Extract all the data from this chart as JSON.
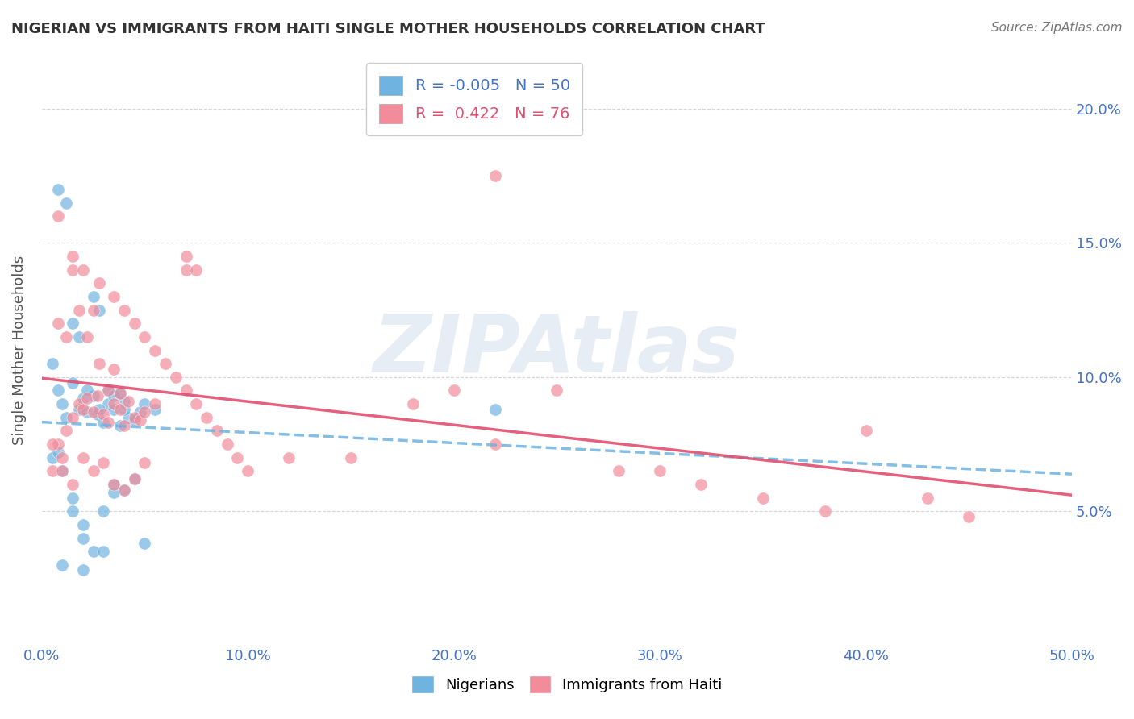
{
  "title": "NIGERIAN VS IMMIGRANTS FROM HAITI SINGLE MOTHER HOUSEHOLDS CORRELATION CHART",
  "source": "Source: ZipAtlas.com",
  "xlabel": "",
  "ylabel": "Single Mother Households",
  "xlim": [
    0.0,
    0.5
  ],
  "ylim": [
    0.0,
    0.22
  ],
  "xticks": [
    0.0,
    0.1,
    0.2,
    0.3,
    0.4,
    0.5
  ],
  "yticks_right": [
    0.05,
    0.1,
    0.15,
    0.2
  ],
  "ytick_labels_right": [
    "5.0%",
    "10.0%",
    "15.0%",
    "20.0%"
  ],
  "xtick_labels": [
    "0.0%",
    "10.0%",
    "20.0%",
    "30.0%",
    "40.0%",
    "50.0%"
  ],
  "legend_r1": "-0.005",
  "legend_n1": "50",
  "legend_r2": "0.422",
  "legend_n2": "76",
  "legend_label1": "Nigerians",
  "legend_label2": "Immigrants from Haiti",
  "color_nigerian": "#6fb3e0",
  "color_haiti": "#f28b9a",
  "color_axis_labels": "#4472c4",
  "watermark": "ZIPAtlas",
  "nigerian_x": [
    0.005,
    0.008,
    0.01,
    0.012,
    0.015,
    0.018,
    0.02,
    0.022,
    0.025,
    0.027,
    0.03,
    0.032,
    0.035,
    0.038,
    0.04,
    0.042,
    0.045,
    0.048,
    0.05,
    0.055,
    0.008,
    0.012,
    0.015,
    0.018,
    0.022,
    0.025,
    0.028,
    0.032,
    0.035,
    0.038,
    0.005,
    0.01,
    0.015,
    0.02,
    0.025,
    0.03,
    0.035,
    0.04,
    0.045,
    0.05,
    0.008,
    0.015,
    0.02,
    0.028,
    0.035,
    0.04,
    0.22,
    0.01,
    0.02,
    0.03
  ],
  "nigerian_y": [
    0.105,
    0.095,
    0.09,
    0.085,
    0.098,
    0.088,
    0.092,
    0.087,
    0.093,
    0.086,
    0.083,
    0.09,
    0.088,
    0.082,
    0.091,
    0.085,
    0.084,
    0.087,
    0.09,
    0.088,
    0.17,
    0.165,
    0.12,
    0.115,
    0.095,
    0.13,
    0.125,
    0.095,
    0.093,
    0.094,
    0.07,
    0.065,
    0.055,
    0.04,
    0.035,
    0.05,
    0.06,
    0.058,
    0.062,
    0.038,
    0.072,
    0.05,
    0.045,
    0.088,
    0.057,
    0.088,
    0.088,
    0.03,
    0.028,
    0.035
  ],
  "haiti_x": [
    0.005,
    0.008,
    0.01,
    0.012,
    0.015,
    0.018,
    0.02,
    0.022,
    0.025,
    0.027,
    0.03,
    0.032,
    0.035,
    0.038,
    0.04,
    0.042,
    0.045,
    0.048,
    0.05,
    0.055,
    0.008,
    0.012,
    0.015,
    0.018,
    0.022,
    0.025,
    0.028,
    0.032,
    0.035,
    0.038,
    0.005,
    0.01,
    0.015,
    0.02,
    0.025,
    0.03,
    0.035,
    0.04,
    0.045,
    0.05,
    0.008,
    0.015,
    0.02,
    0.028,
    0.035,
    0.04,
    0.045,
    0.05,
    0.055,
    0.06,
    0.065,
    0.07,
    0.075,
    0.08,
    0.085,
    0.09,
    0.095,
    0.1,
    0.12,
    0.15,
    0.18,
    0.2,
    0.22,
    0.25,
    0.28,
    0.3,
    0.32,
    0.35,
    0.38,
    0.4,
    0.43,
    0.45,
    0.22,
    0.07,
    0.07,
    0.075
  ],
  "haiti_y": [
    0.065,
    0.075,
    0.07,
    0.08,
    0.085,
    0.09,
    0.088,
    0.092,
    0.087,
    0.093,
    0.086,
    0.083,
    0.09,
    0.088,
    0.082,
    0.091,
    0.085,
    0.084,
    0.087,
    0.09,
    0.12,
    0.115,
    0.14,
    0.125,
    0.115,
    0.125,
    0.105,
    0.095,
    0.103,
    0.094,
    0.075,
    0.065,
    0.06,
    0.07,
    0.065,
    0.068,
    0.06,
    0.058,
    0.062,
    0.068,
    0.16,
    0.145,
    0.14,
    0.135,
    0.13,
    0.125,
    0.12,
    0.115,
    0.11,
    0.105,
    0.1,
    0.095,
    0.09,
    0.085,
    0.08,
    0.075,
    0.07,
    0.065,
    0.07,
    0.07,
    0.09,
    0.095,
    0.075,
    0.095,
    0.065,
    0.065,
    0.06,
    0.055,
    0.05,
    0.08,
    0.055,
    0.048,
    0.175,
    0.145,
    0.14,
    0.14
  ]
}
